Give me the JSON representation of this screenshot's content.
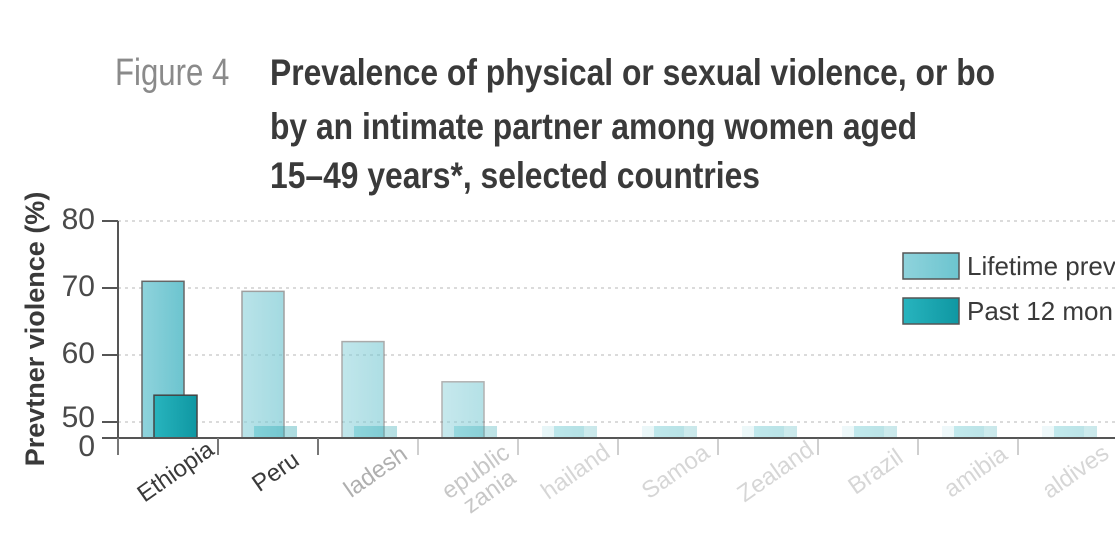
{
  "chart_data": {
    "type": "bar",
    "figure_label": "Figure 4",
    "title_lines": [
      "Prevalence of physical or sexual violence, or bo",
      "by an intimate partner among women aged",
      "15–49 years*, selected countries"
    ],
    "ylabel": "Prevtner violence (%)",
    "ytick_labels": [
      "80",
      "70",
      "60",
      "50",
      "0"
    ],
    "categories": [
      "Ethiopia",
      "Peru",
      "ladesh",
      "epublic\nzania",
      "hailand",
      "Samoa",
      "Zealand",
      "Brazil",
      "amibia",
      "aldives"
    ],
    "series": [
      {
        "name": "Lifetime prev",
        "values": [
          71,
          69.5,
          62,
          56,
          null,
          null,
          null,
          null,
          null,
          null
        ]
      },
      {
        "name": "Past 12 mon",
        "values": [
          54,
          null,
          null,
          null,
          null,
          null,
          null,
          null,
          null,
          null
        ]
      }
    ],
    "ylim": [
      0,
      80
    ],
    "axis_break": true,
    "grid": true,
    "legend_position": "top-right",
    "colors": {
      "lifetime": "#6cc4cf",
      "past12": "#1ea7b2",
      "text": "#3a3a3a",
      "grey": "#8a8a8a"
    }
  }
}
